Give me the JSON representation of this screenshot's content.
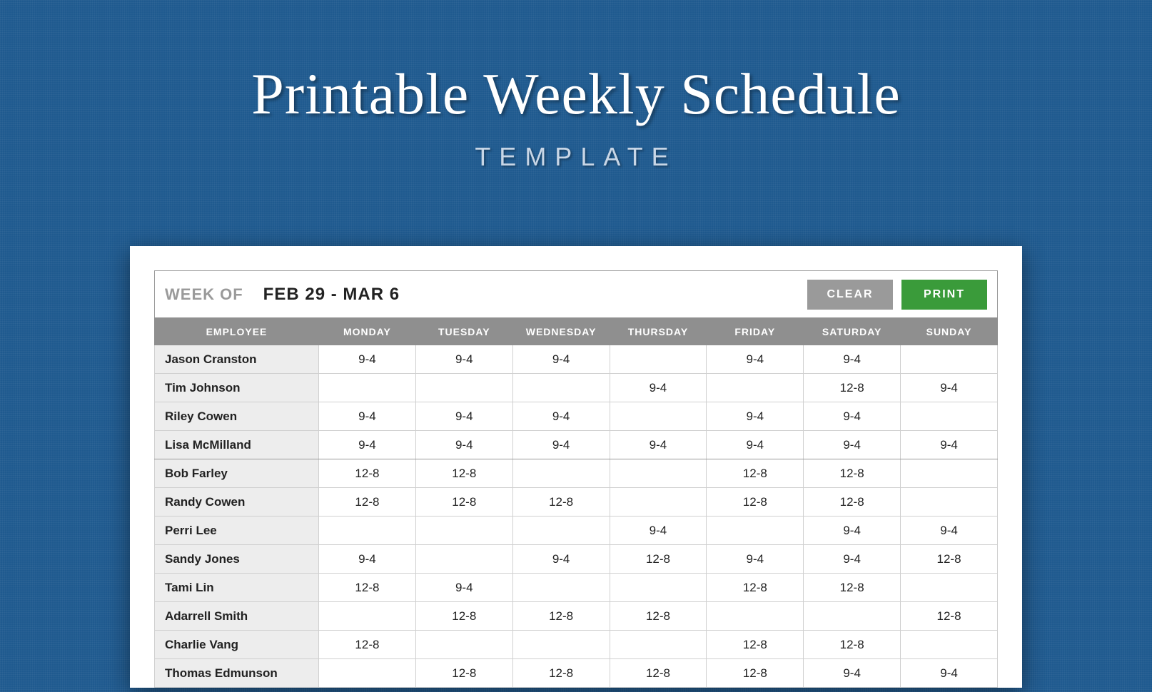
{
  "hero": {
    "title": "Printable Weekly Schedule",
    "subtitle": "TEMPLATE"
  },
  "toolbar": {
    "week_of_label": "WEEK OF",
    "week_range": "FEB 29 - MAR 6",
    "clear_label": "CLEAR",
    "print_label": "PRINT"
  },
  "colors": {
    "background": "#1f5a8f",
    "sheet_bg": "#ffffff",
    "header_row_bg": "#8f8f8f",
    "header_row_text": "#ffffff",
    "emp_cell_bg": "#ededed",
    "btn_clear_bg": "#9a9a9a",
    "btn_print_bg": "#3a9b3a",
    "border": "#d0d0d0"
  },
  "table": {
    "columns": [
      "EMPLOYEE",
      "MONDAY",
      "TUESDAY",
      "WEDNESDAY",
      "THURSDAY",
      "FRIDAY",
      "SATURDAY",
      "SUNDAY"
    ],
    "rows": [
      {
        "employee": "Jason Cranston",
        "cells": [
          "9-4",
          "9-4",
          "9-4",
          "",
          "9-4",
          "9-4",
          ""
        ]
      },
      {
        "employee": "Tim Johnson",
        "cells": [
          "",
          "",
          "",
          "9-4",
          "",
          "12-8",
          "9-4"
        ]
      },
      {
        "employee": "Riley Cowen",
        "cells": [
          "9-4",
          "9-4",
          "9-4",
          "",
          "9-4",
          "9-4",
          ""
        ]
      },
      {
        "employee": "Lisa McMilland",
        "cells": [
          "9-4",
          "9-4",
          "9-4",
          "9-4",
          "9-4",
          "9-4",
          "9-4"
        ],
        "separator": true
      },
      {
        "employee": "Bob Farley",
        "cells": [
          "12-8",
          "12-8",
          "",
          "",
          "12-8",
          "12-8",
          ""
        ]
      },
      {
        "employee": "Randy Cowen",
        "cells": [
          "12-8",
          "12-8",
          "12-8",
          "",
          "12-8",
          "12-8",
          ""
        ]
      },
      {
        "employee": "Perri Lee",
        "cells": [
          "",
          "",
          "",
          "9-4",
          "",
          "9-4",
          "9-4"
        ]
      },
      {
        "employee": "Sandy Jones",
        "cells": [
          "9-4",
          "",
          "9-4",
          "12-8",
          "9-4",
          "9-4",
          "12-8"
        ]
      },
      {
        "employee": "Tami Lin",
        "cells": [
          "12-8",
          "9-4",
          "",
          "",
          "12-8",
          "12-8",
          ""
        ]
      },
      {
        "employee": "Adarrell Smith",
        "cells": [
          "",
          "12-8",
          "12-8",
          "12-8",
          "",
          "",
          "12-8"
        ]
      },
      {
        "employee": "Charlie Vang",
        "cells": [
          "12-8",
          "",
          "",
          "",
          "12-8",
          "12-8",
          ""
        ]
      },
      {
        "employee": "Thomas Edmunson",
        "cells": [
          "",
          "12-8",
          "12-8",
          "12-8",
          "12-8",
          "9-4",
          "9-4"
        ]
      }
    ]
  }
}
